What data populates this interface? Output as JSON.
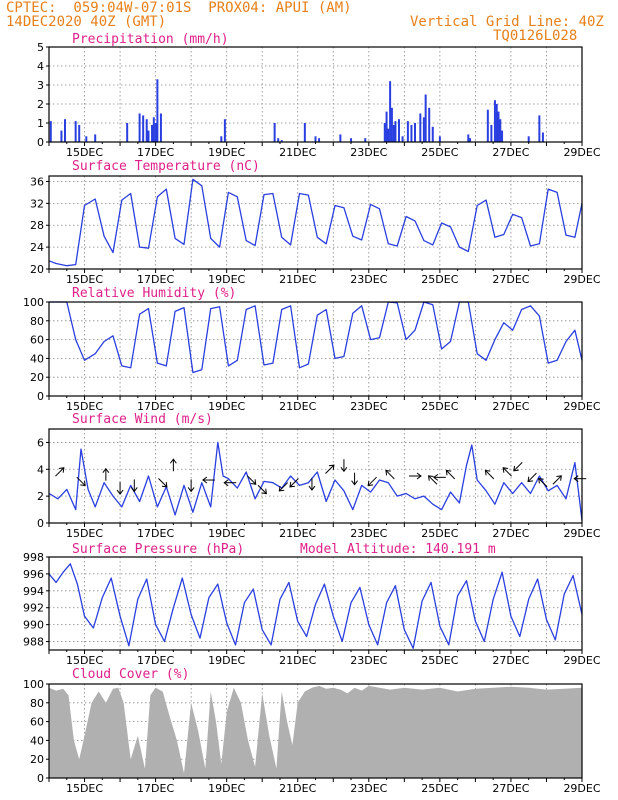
{
  "header": {
    "line1_left": "CPTEC:  059:04W-07:01S  PROX04: APUI (AM)",
    "line2_left": "14DEC2020 40Z (GMT)",
    "line1_right": "Vertical Grid Line: 40Z",
    "line2_right": "TQ0126L028"
  },
  "x_ticks": [
    "15DEC",
    "17DEC",
    "19DEC",
    "21DEC",
    "23DEC",
    "25DEC",
    "27DEC",
    "29DEC"
  ],
  "model_altitude_label": "Model Altitude: 140.191 m",
  "colors": {
    "header": "#e8801a",
    "panel_title": "#e0208a",
    "series": "#2a3fe0",
    "cloud": "#b0b0b0",
    "grid": "#888888"
  },
  "chart_data": [
    {
      "type": "bar",
      "title": "Precipitation (mm/h)",
      "ylim": [
        0,
        5
      ],
      "yticks": [
        0,
        1,
        2,
        3,
        4,
        5
      ],
      "x_range": [
        14.0,
        29.0
      ],
      "x": [
        14.05,
        14.35,
        14.45,
        14.75,
        14.85,
        15.05,
        15.3,
        16.2,
        16.55,
        16.65,
        16.75,
        16.8,
        16.9,
        16.95,
        17.0,
        17.05,
        17.15,
        18.85,
        18.95,
        20.35,
        20.45,
        20.55,
        21.2,
        21.5,
        21.6,
        22.2,
        22.5,
        22.9,
        23.45,
        23.5,
        23.55,
        23.6,
        23.65,
        23.7,
        23.75,
        23.85,
        23.95,
        24.1,
        24.2,
        24.3,
        24.45,
        24.55,
        24.6,
        24.7,
        24.8,
        25.0,
        25.8,
        25.85,
        26.35,
        26.45,
        26.55,
        26.6,
        26.65,
        26.7,
        26.75,
        27.5,
        27.8,
        27.9
      ],
      "values": [
        1.1,
        0.6,
        1.2,
        1.1,
        0.9,
        0.3,
        0.4,
        1.0,
        1.5,
        1.4,
        1.2,
        0.6,
        0.9,
        1.3,
        1.0,
        3.3,
        1.5,
        0.3,
        1.2,
        1.0,
        0.2,
        0.1,
        1.0,
        0.3,
        0.2,
        0.4,
        0.2,
        0.2,
        1.0,
        1.6,
        0.7,
        3.2,
        1.8,
        0.9,
        1.1,
        1.2,
        0.3,
        1.1,
        0.9,
        1.0,
        1.5,
        1.3,
        2.5,
        1.8,
        0.8,
        0.3,
        0.4,
        0.2,
        1.7,
        0.9,
        2.2,
        2.0,
        1.6,
        1.2,
        0.6,
        0.3,
        1.4,
        0.5
      ]
    },
    {
      "type": "line",
      "title": "Surface Temperature (nC)",
      "ylim": [
        20,
        37
      ],
      "yticks": [
        20,
        24,
        28,
        32,
        36
      ],
      "x": [
        14.0,
        14.2,
        14.5,
        14.75,
        15.0,
        15.3,
        15.55,
        15.8,
        16.05,
        16.3,
        16.55,
        16.8,
        17.05,
        17.3,
        17.55,
        17.8,
        18.05,
        18.3,
        18.55,
        18.8,
        19.05,
        19.3,
        19.55,
        19.8,
        20.05,
        20.3,
        20.55,
        20.8,
        21.05,
        21.3,
        21.55,
        21.8,
        22.05,
        22.3,
        22.55,
        22.8,
        23.05,
        23.3,
        23.55,
        23.8,
        24.05,
        24.3,
        24.55,
        24.8,
        25.05,
        25.3,
        25.55,
        25.8,
        26.05,
        26.3,
        26.55,
        26.8,
        27.05,
        27.3,
        27.55,
        27.8,
        28.05,
        28.3,
        28.55,
        28.8,
        29.0
      ],
      "values": [
        21.5,
        21.0,
        20.6,
        20.8,
        31.6,
        32.8,
        26.0,
        23.0,
        32.6,
        33.8,
        24.0,
        23.8,
        33.2,
        34.6,
        25.6,
        24.5,
        36.4,
        35.2,
        25.6,
        24.0,
        34.0,
        33.2,
        25.2,
        24.3,
        33.6,
        33.8,
        25.8,
        24.4,
        33.8,
        33.5,
        25.8,
        24.6,
        31.6,
        31.2,
        26.0,
        25.3,
        31.8,
        31.0,
        24.6,
        24.2,
        29.6,
        28.8,
        25.2,
        24.4,
        28.4,
        27.7,
        24.0,
        23.2,
        31.6,
        32.6,
        25.8,
        26.3,
        30.0,
        29.4,
        24.2,
        24.6,
        34.6,
        34.0,
        26.2,
        25.8,
        32.0
      ]
    },
    {
      "type": "line",
      "title": "Relative Humidity (%)",
      "ylim": [
        0,
        100
      ],
      "yticks": [
        0,
        20,
        40,
        60,
        80,
        100
      ],
      "x": [
        14.0,
        14.2,
        14.5,
        14.75,
        15.0,
        15.3,
        15.55,
        15.8,
        16.05,
        16.3,
        16.55,
        16.8,
        17.05,
        17.3,
        17.55,
        17.8,
        18.05,
        18.3,
        18.55,
        18.8,
        19.05,
        19.3,
        19.55,
        19.8,
        20.05,
        20.3,
        20.55,
        20.8,
        21.05,
        21.3,
        21.55,
        21.8,
        22.05,
        22.3,
        22.55,
        22.8,
        23.05,
        23.3,
        23.55,
        23.8,
        24.05,
        24.3,
        24.55,
        24.8,
        25.05,
        25.3,
        25.55,
        25.8,
        26.05,
        26.3,
        26.55,
        26.8,
        27.05,
        27.3,
        27.55,
        27.8,
        28.05,
        28.3,
        28.55,
        28.8,
        29.0
      ],
      "values": [
        100,
        100,
        100,
        60,
        38,
        45,
        58,
        64,
        32,
        30,
        87,
        93,
        35,
        32,
        90,
        94,
        25,
        28,
        93,
        95,
        32,
        38,
        92,
        96,
        33,
        35,
        92,
        96,
        30,
        34,
        86,
        92,
        40,
        42,
        88,
        96,
        60,
        62,
        100,
        99,
        60,
        70,
        100,
        97,
        50,
        58,
        100,
        100,
        45,
        38,
        60,
        78,
        70,
        92,
        96,
        85,
        35,
        38,
        58,
        70,
        38
      ]
    },
    {
      "type": "line",
      "title": "Surface Wind (m/s)",
      "ylim": [
        0,
        7
      ],
      "yticks": [
        0,
        2,
        4,
        6
      ],
      "x": [
        14.0,
        14.25,
        14.5,
        14.75,
        14.9,
        15.1,
        15.3,
        15.55,
        15.8,
        16.05,
        16.3,
        16.55,
        16.8,
        17.05,
        17.3,
        17.55,
        17.8,
        18.05,
        18.3,
        18.55,
        18.75,
        18.9,
        19.05,
        19.3,
        19.55,
        19.8,
        20.05,
        20.3,
        20.55,
        20.8,
        21.05,
        21.3,
        21.55,
        21.8,
        22.05,
        22.3,
        22.55,
        22.8,
        23.05,
        23.3,
        23.55,
        23.8,
        24.05,
        24.3,
        24.55,
        24.8,
        25.05,
        25.3,
        25.55,
        25.75,
        25.9,
        26.05,
        26.3,
        26.55,
        26.8,
        27.05,
        27.3,
        27.55,
        27.8,
        28.05,
        28.3,
        28.55,
        28.8,
        29.0
      ],
      "values": [
        2.2,
        1.8,
        2.5,
        1.0,
        5.5,
        2.5,
        1.2,
        3.0,
        2.0,
        1.2,
        2.8,
        1.6,
        3.5,
        1.2,
        2.7,
        0.6,
        2.8,
        0.8,
        3.0,
        1.2,
        6.0,
        3.5,
        3.3,
        2.6,
        3.8,
        1.8,
        3.1,
        3.0,
        2.6,
        3.5,
        2.8,
        3.0,
        3.8,
        1.6,
        3.2,
        2.4,
        1.0,
        2.8,
        2.3,
        3.2,
        3.0,
        2.0,
        2.2,
        1.8,
        2.0,
        1.4,
        1.0,
        2.3,
        1.5,
        4.3,
        5.8,
        3.2,
        2.4,
        1.4,
        3.0,
        2.2,
        3.0,
        2.2,
        3.5,
        2.4,
        2.8,
        1.8,
        4.5,
        0.2
      ],
      "wind_arrows": [
        {
          "x": 14.3,
          "y": 3.8,
          "dir": "ne"
        },
        {
          "x": 14.9,
          "y": 3.1,
          "dir": "se"
        },
        {
          "x": 15.6,
          "y": 3.6,
          "dir": "n"
        },
        {
          "x": 16.0,
          "y": 2.6,
          "dir": "s"
        },
        {
          "x": 16.4,
          "y": 2.8,
          "dir": "s"
        },
        {
          "x": 17.2,
          "y": 3.0,
          "dir": "se"
        },
        {
          "x": 17.5,
          "y": 4.3,
          "dir": "n"
        },
        {
          "x": 18.0,
          "y": 2.8,
          "dir": "s"
        },
        {
          "x": 18.5,
          "y": 3.2,
          "dir": "w"
        },
        {
          "x": 19.1,
          "y": 3.0,
          "dir": "w"
        },
        {
          "x": 19.7,
          "y": 3.2,
          "dir": "se"
        },
        {
          "x": 20.0,
          "y": 2.5,
          "dir": "se"
        },
        {
          "x": 20.6,
          "y": 2.7,
          "dir": "sw"
        },
        {
          "x": 20.9,
          "y": 3.0,
          "dir": "sw"
        },
        {
          "x": 21.4,
          "y": 2.9,
          "dir": "s"
        },
        {
          "x": 21.9,
          "y": 4.0,
          "dir": "ne"
        },
        {
          "x": 22.3,
          "y": 4.3,
          "dir": "s"
        },
        {
          "x": 22.6,
          "y": 3.3,
          "dir": "s"
        },
        {
          "x": 23.1,
          "y": 3.1,
          "dir": "sw"
        },
        {
          "x": 23.6,
          "y": 3.6,
          "dir": "nw"
        },
        {
          "x": 24.3,
          "y": 3.5,
          "dir": "e"
        },
        {
          "x": 24.8,
          "y": 3.2,
          "dir": "nw"
        },
        {
          "x": 25.0,
          "y": 3.4,
          "dir": "w"
        },
        {
          "x": 25.3,
          "y": 3.6,
          "dir": "nw"
        },
        {
          "x": 26.4,
          "y": 3.6,
          "dir": "nw"
        },
        {
          "x": 26.9,
          "y": 3.8,
          "dir": "nw"
        },
        {
          "x": 27.2,
          "y": 4.2,
          "dir": "sw"
        },
        {
          "x": 27.6,
          "y": 3.4,
          "dir": "sw"
        },
        {
          "x": 27.9,
          "y": 3.0,
          "dir": "nw"
        },
        {
          "x": 28.3,
          "y": 3.2,
          "dir": "ne"
        },
        {
          "x": 28.95,
          "y": 3.3,
          "dir": "w"
        }
      ]
    },
    {
      "type": "line",
      "title": "Surface Pressure (hPa)",
      "ylim": [
        987,
        998
      ],
      "yticks": [
        988,
        990,
        992,
        994,
        996,
        998
      ],
      "x": [
        14.0,
        14.2,
        14.4,
        14.6,
        14.8,
        15.0,
        15.25,
        15.5,
        15.75,
        16.0,
        16.25,
        16.5,
        16.75,
        17.0,
        17.25,
        17.5,
        17.75,
        18.0,
        18.25,
        18.5,
        18.75,
        19.0,
        19.25,
        19.5,
        19.75,
        20.0,
        20.25,
        20.5,
        20.75,
        21.0,
        21.25,
        21.5,
        21.75,
        22.0,
        22.25,
        22.5,
        22.75,
        23.0,
        23.25,
        23.5,
        23.75,
        24.0,
        24.25,
        24.5,
        24.75,
        25.0,
        25.25,
        25.5,
        25.75,
        26.0,
        26.25,
        26.5,
        26.75,
        27.0,
        27.25,
        27.5,
        27.75,
        28.0,
        28.25,
        28.5,
        28.75,
        29.0
      ],
      "values": [
        996.0,
        995.0,
        996.2,
        997.2,
        994.8,
        991.0,
        989.6,
        993.2,
        995.5,
        991.0,
        987.5,
        993.0,
        995.4,
        990.0,
        988.0,
        992.0,
        995.5,
        991.2,
        988.4,
        993.2,
        994.8,
        990.2,
        987.6,
        992.6,
        994.2,
        989.4,
        987.6,
        993.0,
        995.0,
        990.4,
        988.6,
        992.4,
        994.8,
        991.0,
        988.0,
        992.6,
        994.4,
        990.0,
        987.6,
        992.6,
        994.6,
        989.4,
        987.2,
        992.8,
        995.0,
        989.8,
        987.6,
        993.4,
        995.2,
        990.4,
        988.0,
        993.0,
        996.2,
        991.0,
        988.6,
        993.0,
        995.4,
        990.6,
        988.2,
        993.6,
        995.8,
        991.2
      ]
    },
    {
      "type": "area",
      "title": "Cloud Cover (%)",
      "ylim": [
        0,
        100
      ],
      "yticks": [
        0,
        20,
        40,
        60,
        80,
        100
      ],
      "x": [
        14.0,
        14.2,
        14.4,
        14.55,
        14.7,
        14.85,
        15.0,
        15.2,
        15.4,
        15.6,
        15.8,
        15.95,
        16.1,
        16.3,
        16.5,
        16.7,
        16.85,
        17.0,
        17.2,
        17.4,
        17.6,
        17.8,
        18.0,
        18.2,
        18.4,
        18.55,
        18.7,
        18.85,
        19.0,
        19.2,
        19.4,
        19.6,
        19.8,
        20.0,
        20.2,
        20.4,
        20.55,
        20.7,
        20.85,
        21.0,
        21.2,
        21.4,
        21.6,
        21.8,
        22.0,
        22.2,
        22.4,
        22.6,
        22.8,
        23.0,
        23.3,
        23.6,
        24.0,
        24.5,
        25.0,
        25.5,
        26.0,
        26.5,
        27.0,
        27.5,
        28.0,
        28.5,
        29.0
      ],
      "values": [
        96,
        93,
        95,
        88,
        40,
        20,
        45,
        80,
        92,
        80,
        95,
        96,
        80,
        20,
        45,
        10,
        88,
        96,
        92,
        65,
        40,
        5,
        80,
        50,
        10,
        92,
        60,
        15,
        70,
        96,
        80,
        40,
        12,
        90,
        45,
        10,
        92,
        60,
        35,
        80,
        92,
        96,
        98,
        95,
        96,
        94,
        90,
        96,
        93,
        98,
        96,
        94,
        96,
        94,
        96,
        92,
        95,
        96,
        97,
        96,
        94,
        95,
        96
      ]
    }
  ]
}
